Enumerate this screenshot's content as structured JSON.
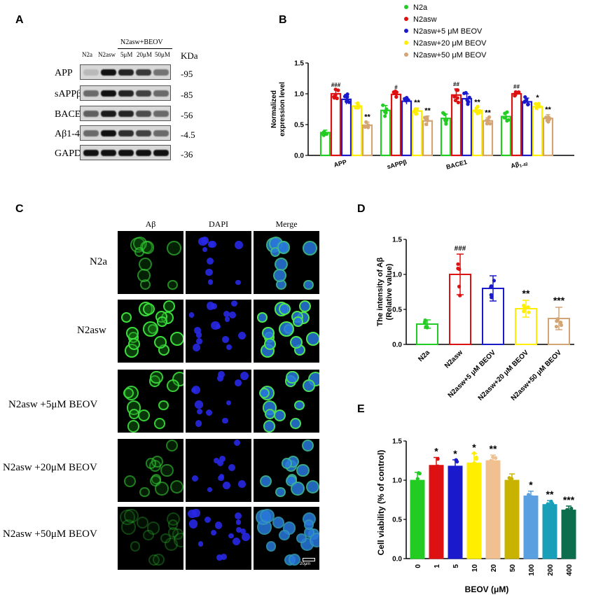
{
  "panel_letters": {
    "a": "A",
    "b": "B",
    "c": "C",
    "d": "D",
    "e": "E"
  },
  "western_blot": {
    "group_header": "N2asw+BEOV",
    "lanes": [
      "N2a",
      "N2asw",
      "5μM",
      "20μM",
      "50μM"
    ],
    "kda_header": "KDa",
    "rows": [
      {
        "protein": "APP",
        "kda": "-95"
      },
      {
        "protein": "sAPPβ",
        "kda": "-85"
      },
      {
        "protein": "BACE1",
        "kda": "-56"
      },
      {
        "protein": "Aβ1-42",
        "kda": "-4.5"
      },
      {
        "protein": "GAPDH",
        "kda": "-36"
      }
    ],
    "band_intensity": [
      [
        0.15,
        1.0,
        0.9,
        0.8,
        0.5
      ],
      [
        0.55,
        1.0,
        0.9,
        0.75,
        0.55
      ],
      [
        0.6,
        0.95,
        0.9,
        0.7,
        0.55
      ],
      [
        0.55,
        1.0,
        0.85,
        0.75,
        0.55
      ],
      [
        1.0,
        1.0,
        1.0,
        1.0,
        1.0
      ]
    ]
  },
  "microscopy": {
    "columns": [
      "Aβ",
      "DAPI",
      "Merge"
    ],
    "column_colors": [
      "#2ecc40",
      "#2a2aff",
      "#9acd32"
    ],
    "rows": [
      "N2a",
      "N2asw",
      "N2asw +5μM BEOV",
      "N2asw +20μM BEOV",
      "N2asw +50μM BEOV"
    ],
    "scale_bar": "20μm"
  },
  "chart_data": [
    {
      "type": "bar",
      "panel": "B",
      "ylabel": "Normalized expression level",
      "ylim": [
        0,
        1.5
      ],
      "yticks": [
        "0.0",
        "0.5",
        "1.0",
        "1.5"
      ],
      "categories": [
        "APP",
        "sAPPβ",
        "BACE1",
        "Aβ1-42"
      ],
      "series": [
        {
          "name": "N2a",
          "color": "#22cc22",
          "values": [
            0.37,
            0.73,
            0.6,
            0.63
          ],
          "err": [
            0.04,
            0.08,
            0.07,
            0.06
          ]
        },
        {
          "name": "N2asw",
          "color": "#dd1111",
          "values": [
            1.0,
            0.99,
            0.98,
            1.0
          ],
          "err": [
            0.07,
            0.04,
            0.1,
            0.04
          ]
        },
        {
          "name": "N2asw+5 μM BEOV",
          "color": "#1a1acc",
          "values": [
            0.91,
            0.88,
            0.92,
            0.87
          ],
          "err": [
            0.08,
            0.05,
            0.08,
            0.06
          ]
        },
        {
          "name": "N2asw+20 μM BEOV",
          "color": "#ffee00",
          "values": [
            0.8,
            0.72,
            0.73,
            0.79
          ],
          "err": [
            0.05,
            0.05,
            0.05,
            0.06
          ]
        },
        {
          "name": "N2asw+50 μM BEOV",
          "color": "#d4a574",
          "values": [
            0.49,
            0.56,
            0.56,
            0.6
          ],
          "err": [
            0.05,
            0.08,
            0.05,
            0.06
          ]
        }
      ],
      "annotations": [
        [
          "",
          "###",
          "",
          "",
          "**"
        ],
        [
          "",
          "#",
          "",
          "**",
          "**"
        ],
        [
          "",
          "##",
          "",
          "**",
          "**"
        ],
        [
          "",
          "##",
          "",
          "*",
          "**"
        ]
      ],
      "legend_position": "top-right"
    },
    {
      "type": "bar",
      "panel": "D",
      "ylabel_line1": "The  intensity of Aβ",
      "ylabel_line2": "(Relative value)",
      "ylim": [
        0,
        1.5
      ],
      "yticks": [
        "0.0",
        "0.5",
        "1.0",
        "1.5"
      ],
      "categories": [
        "N2a",
        "N2asw",
        "N2asw+5 μM BEOV",
        "N2asw+20 μM BEOV",
        "N2asw+50 μM BEOV"
      ],
      "colors": [
        "#22cc22",
        "#dd1111",
        "#1a1acc",
        "#ffee00",
        "#d4a574"
      ],
      "values": [
        0.29,
        1.0,
        0.8,
        0.51,
        0.37
      ],
      "err": [
        0.06,
        0.29,
        0.18,
        0.12,
        0.16
      ],
      "annotations": [
        "",
        "###",
        "",
        "**",
        "***"
      ]
    },
    {
      "type": "bar",
      "panel": "E",
      "ylabel": "Cell viability (% of control)",
      "xlabel": "BEOV (μM)",
      "ylim": [
        0,
        1.5
      ],
      "yticks": [
        "0.0",
        "0.5",
        "1.0",
        "1.5"
      ],
      "categories": [
        "0",
        "1",
        "5",
        "10",
        "20",
        "50",
        "100",
        "200",
        "400"
      ],
      "colors": [
        "#22cc22",
        "#dd1111",
        "#1a1acc",
        "#ffee00",
        "#f0c090",
        "#c8b400",
        "#5aa0e0",
        "#1a9fb8",
        "#0d6e4e"
      ],
      "values": [
        1.0,
        1.19,
        1.18,
        1.22,
        1.25,
        1.0,
        0.8,
        0.69,
        0.62
      ],
      "err": [
        0.1,
        0.1,
        0.08,
        0.12,
        0.07,
        0.08,
        0.06,
        0.05,
        0.05
      ],
      "annotations": [
        "",
        "*",
        "*",
        "*",
        "**",
        "",
        "*",
        "**",
        "***"
      ]
    }
  ]
}
